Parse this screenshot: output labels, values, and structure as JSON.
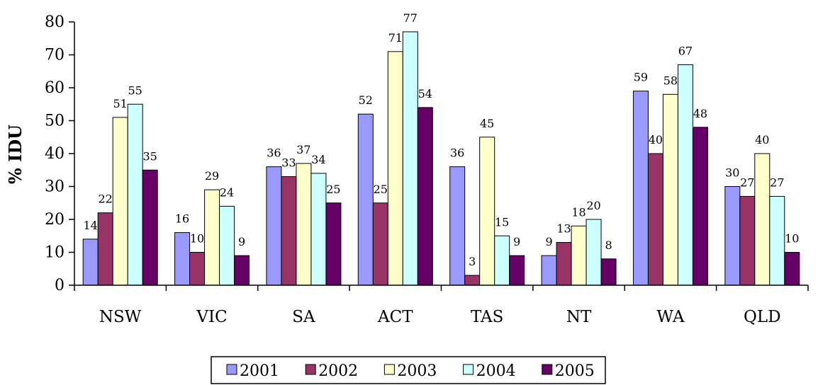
{
  "chart_data": {
    "type": "bar",
    "title": "",
    "xlabel": "",
    "ylabel": "% IDU",
    "ylim": [
      0,
      80
    ],
    "yticks": [
      0,
      10,
      20,
      30,
      40,
      50,
      60,
      70,
      80
    ],
    "grid": false,
    "legend_position": "bottom",
    "categories": [
      "NSW",
      "VIC",
      "SA",
      "ACT",
      "TAS",
      "NT",
      "WA",
      "QLD"
    ],
    "series": [
      {
        "name": "2001",
        "color": "#9999FF",
        "values": [
          14,
          16,
          36,
          52,
          36,
          9,
          59,
          30
        ]
      },
      {
        "name": "2002",
        "color": "#993366",
        "values": [
          22,
          10,
          33,
          25,
          3,
          13,
          40,
          27
        ]
      },
      {
        "name": "2003",
        "color": "#FFFFCC",
        "values": [
          51,
          29,
          37,
          71,
          45,
          18,
          58,
          40
        ]
      },
      {
        "name": "2004",
        "color": "#CCFFFF",
        "values": [
          55,
          24,
          34,
          77,
          15,
          20,
          67,
          27
        ]
      },
      {
        "name": "2005",
        "color": "#660066",
        "values": [
          35,
          9,
          25,
          54,
          9,
          8,
          48,
          10
        ]
      }
    ]
  }
}
